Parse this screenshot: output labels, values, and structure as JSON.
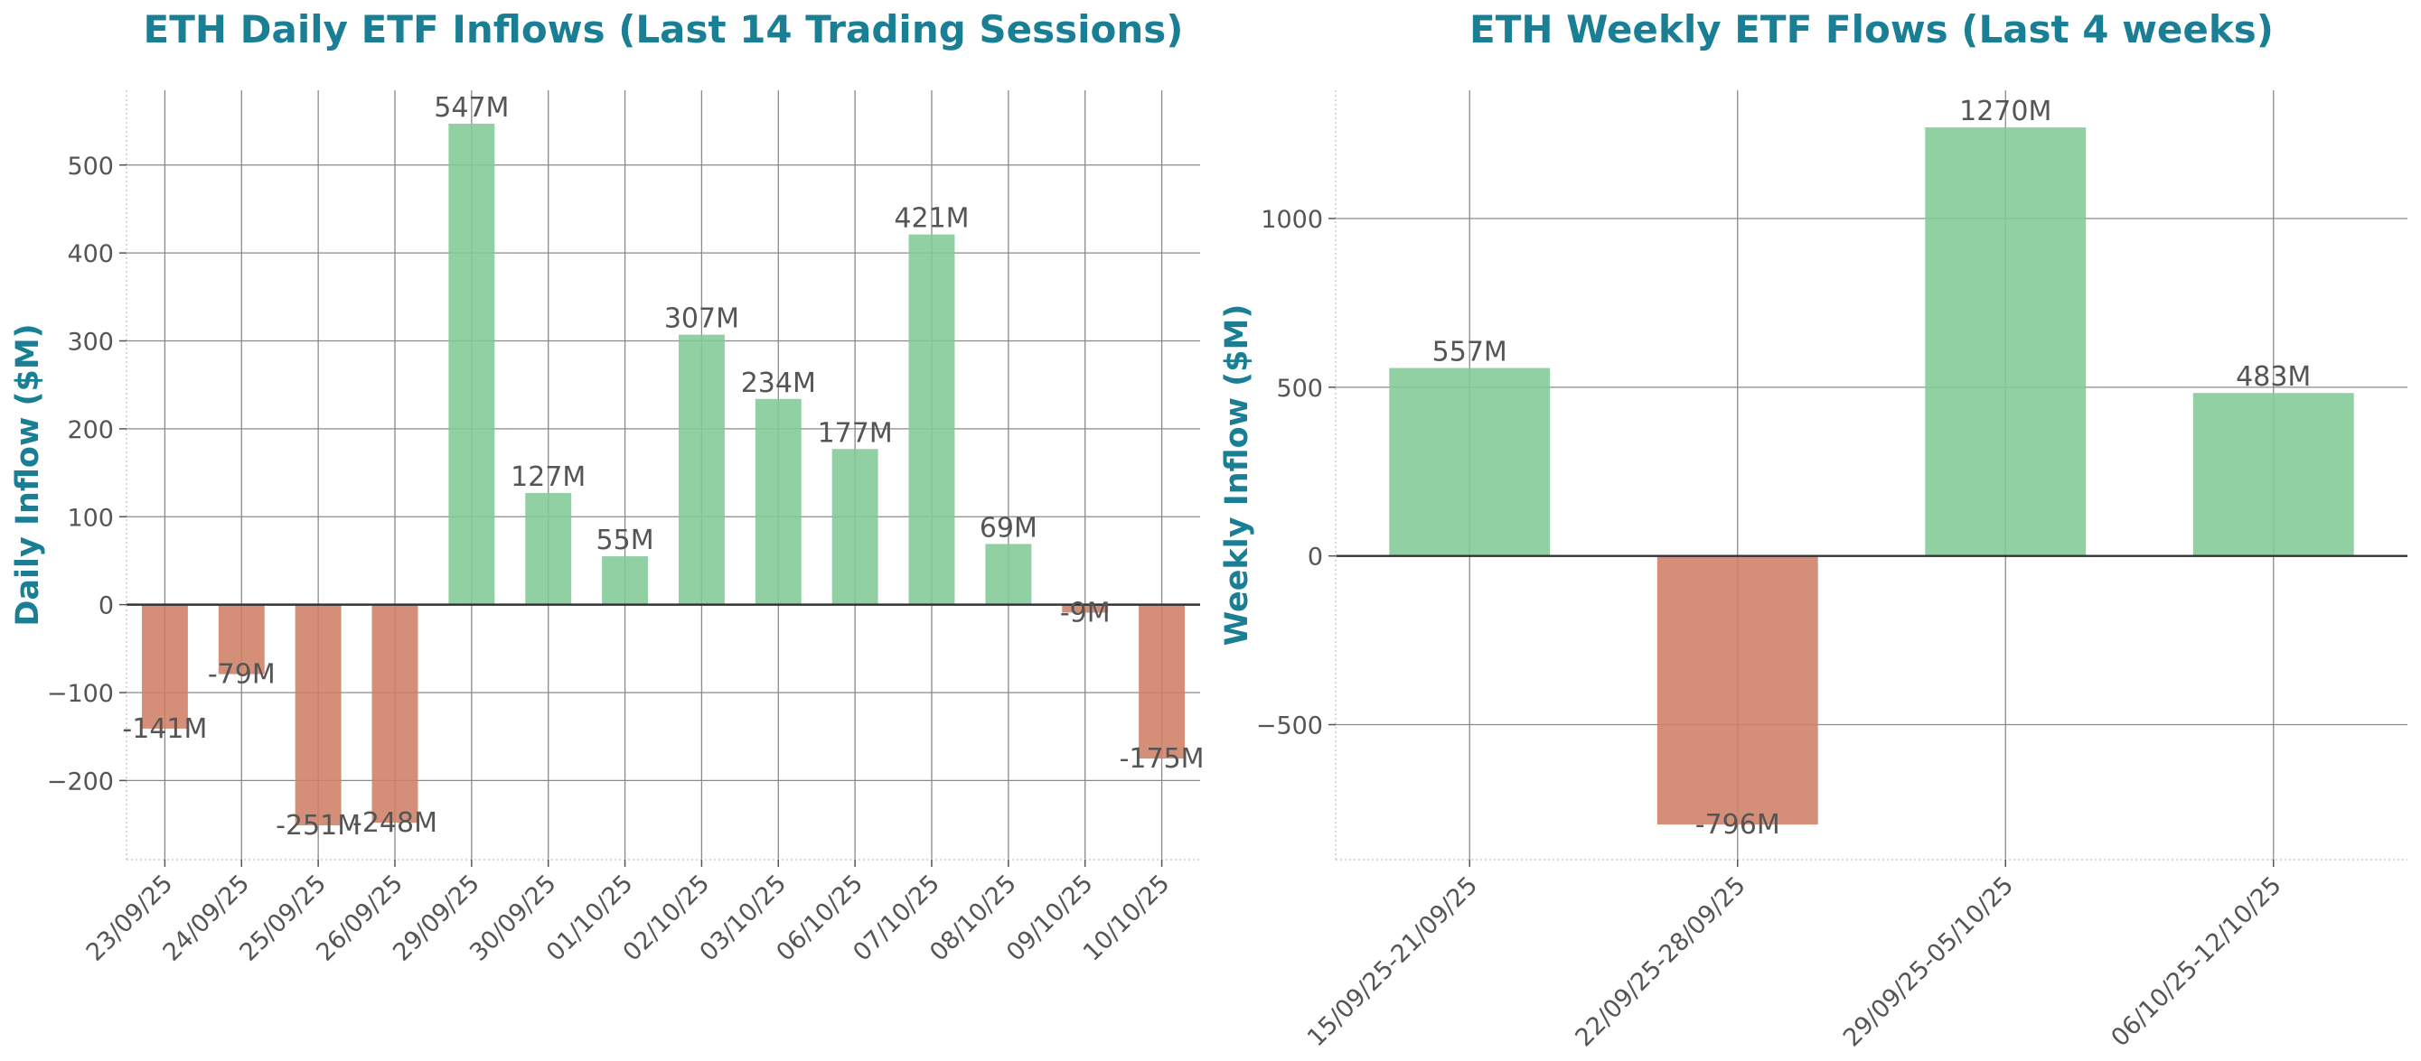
{
  "colors": {
    "accent": "#1a7f94",
    "positive": "#81c995",
    "negative": "#cf7f66",
    "text": "#555555"
  },
  "chart_data": [
    {
      "type": "bar",
      "title": "ETH Daily ETF Inflows (Last 14 Trading Sessions)",
      "xlabel": "",
      "ylabel": "Daily Inflow ($M)",
      "categories": [
        "23/09/25",
        "24/09/25",
        "25/09/25",
        "26/09/25",
        "29/09/25",
        "30/09/25",
        "01/10/25",
        "02/10/25",
        "03/10/25",
        "06/10/25",
        "07/10/25",
        "08/10/25",
        "09/10/25",
        "10/10/25"
      ],
      "values": [
        -141,
        -79,
        -251,
        -248,
        547,
        127,
        55,
        307,
        234,
        177,
        421,
        69,
        -9,
        -175
      ],
      "data_labels": [
        "-141M",
        "-79M",
        "-251M",
        "-248M",
        "547M",
        "127M",
        "55M",
        "307M",
        "234M",
        "177M",
        "421M",
        "69M",
        "-9M",
        "-175M"
      ],
      "yticks": [
        -200,
        -100,
        0,
        100,
        200,
        300,
        400,
        500
      ],
      "ytick_labels": [
        "−200",
        "−100",
        "0",
        "100",
        "200",
        "300",
        "400",
        "500"
      ],
      "ylim": [
        -290,
        585
      ],
      "grid": true
    },
    {
      "type": "bar",
      "title": "ETH Weekly ETF Flows (Last 4 weeks)",
      "xlabel": "",
      "ylabel": "Weekly Inflow ($M)",
      "categories": [
        "15/09/25-21/09/25",
        "22/09/25-28/09/25",
        "29/09/25-05/10/25",
        "06/10/25-12/10/25"
      ],
      "values": [
        557,
        -796,
        1270,
        483
      ],
      "data_labels": [
        "557M",
        "-796M",
        "1270M",
        "483M"
      ],
      "yticks": [
        -500,
        0,
        500,
        1000
      ],
      "ytick_labels": [
        "−500",
        "0",
        "500",
        "1000"
      ],
      "ylim": [
        -900,
        1380
      ],
      "grid": true
    }
  ]
}
